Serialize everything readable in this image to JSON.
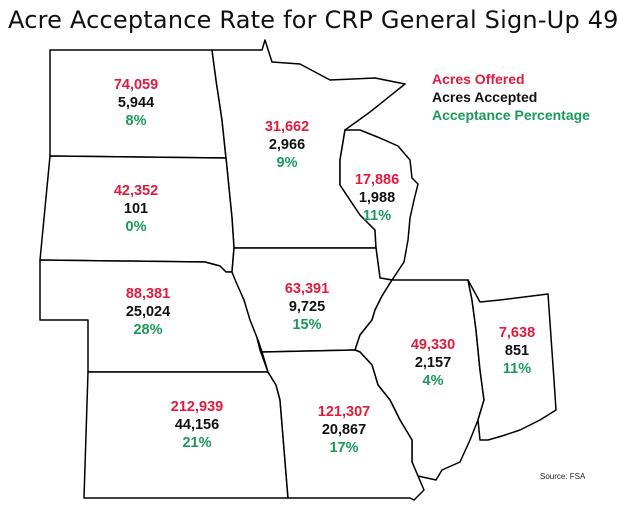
{
  "title": "Acre Acceptance Rate for CRP General Sign-Up 49",
  "legend": {
    "offered": "Acres Offered",
    "accepted": "Acres Accepted",
    "percentage": "Acceptance Percentage"
  },
  "colors": {
    "offered": "#e01b3c",
    "accepted": "#111111",
    "percentage": "#1a9a5a"
  },
  "states": {
    "north_dakota": {
      "offered": "74,059",
      "accepted": "5,944",
      "percentage": "8%"
    },
    "minnesota": {
      "offered": "31,662",
      "accepted": "2,966",
      "percentage": "9%"
    },
    "wisconsin": {
      "offered": "17,886",
      "accepted": "1,988",
      "percentage": "11%"
    },
    "south_dakota": {
      "offered": "42,352",
      "accepted": "101",
      "percentage": "0%"
    },
    "nebraska": {
      "offered": "88,381",
      "accepted": "25,024",
      "percentage": "28%"
    },
    "iowa": {
      "offered": "63,391",
      "accepted": "9,725",
      "percentage": "15%"
    },
    "illinois": {
      "offered": "49,330",
      "accepted": "2,157",
      "percentage": "4%"
    },
    "indiana": {
      "offered": "7,638",
      "accepted": "851",
      "percentage": "11%"
    },
    "kansas": {
      "offered": "212,939",
      "accepted": "44,156",
      "percentage": "21%"
    },
    "missouri": {
      "offered": "121,307",
      "accepted": "20,867",
      "percentage": "17%"
    }
  },
  "source": "Source: FSA"
}
